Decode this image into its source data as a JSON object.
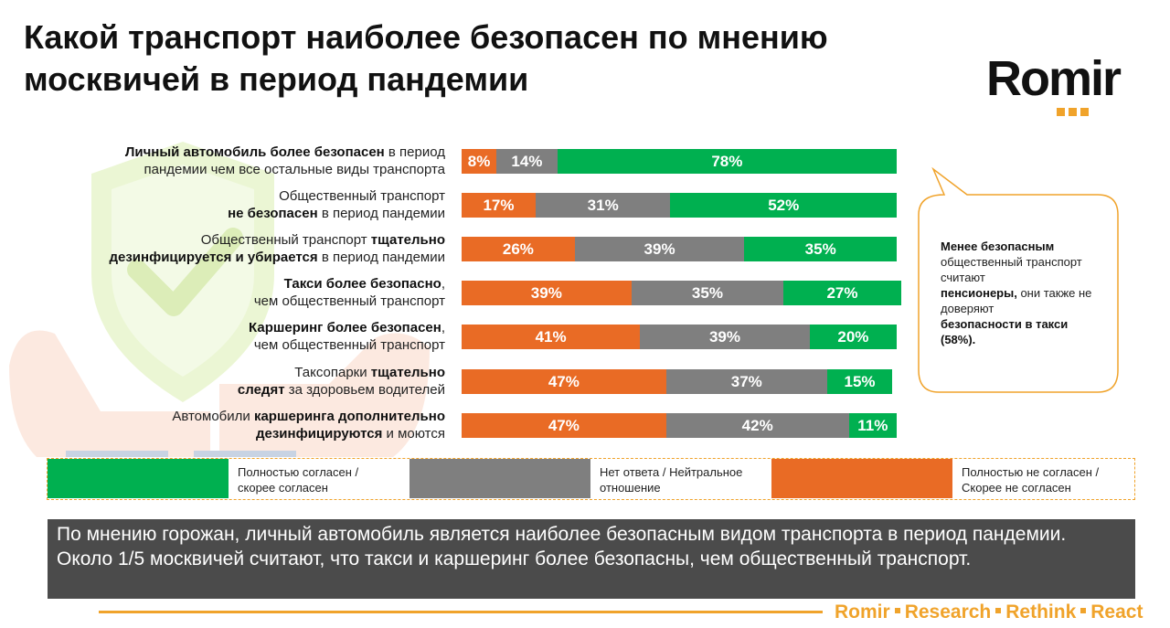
{
  "title_line1": "Какой транспорт наиболее безопасен по мнению",
  "title_line2": "москвичей в период пандемии",
  "logo": {
    "text": "Romir",
    "accent": "#F0A32B"
  },
  "colors": {
    "agree": "#00B050",
    "neutral": "#7F7F7F",
    "disagree": "#E96B25",
    "accent": "#F0A32B"
  },
  "chart_data": {
    "type": "bar",
    "orientation": "horizontal",
    "stacked": true,
    "percent": true,
    "categories": [
      "Личный автомобиль более безопасен в период пандемии чем все остальные виды транспорта",
      "Общественный транспорт не безопасен в период пандемии",
      "Общественный транспорт тщательно дезинфицируется и убирается в период пандемии",
      "Такси более безопасно, чем общественный транспорт",
      "Каршеринг более безопасен, чем общественный транспорт",
      "Таксопарки тщательно следят за здоровьем водителей",
      "Автомобили каршеринга дополнительно дезинфицируются и моются"
    ],
    "series": [
      {
        "name": "Полностью не согласен / Скорее не согласен",
        "color": "#E96B25",
        "values": [
          8,
          17,
          26,
          39,
          41,
          47,
          47
        ],
        "labels": [
          "8%",
          "17%",
          "26%",
          "39%",
          "41%",
          "47%",
          "47%"
        ]
      },
      {
        "name": "Нет ответа / Нейтральное отношение",
        "color": "#7F7F7F",
        "values": [
          14,
          31,
          39,
          35,
          39,
          37,
          42
        ],
        "labels": [
          "14%",
          "31%",
          "39%",
          "35%",
          "39%",
          "37%",
          "42%"
        ]
      },
      {
        "name": "Полностью согласен / скорее согласен",
        "color": "#00B050",
        "values": [
          78,
          52,
          35,
          27,
          20,
          15,
          11
        ],
        "labels": [
          "78%",
          "52%",
          "35%",
          "27%",
          "20%",
          "15%",
          "11%"
        ]
      }
    ]
  },
  "rows": [
    {
      "bold1": "Личный автомобиль более безопасен",
      "text1": " в период",
      "text2": "пандемии чем все остальные виды транспорта"
    },
    {
      "text1": "Общественный транспорт",
      "bold2": "не безопасен",
      "text2": " в период пандемии"
    },
    {
      "text1": "Общественный транспорт ",
      "bold1": "тщательно",
      "bold2": "дезинфицируется и убирается",
      "text2": " в период пандемии"
    },
    {
      "bold1": "Такси более безопасно",
      "text1": ",",
      "text2": "чем общественный транспорт"
    },
    {
      "bold1": "Каршеринг более безопасен",
      "text1": ",",
      "text2": "чем общественный транспорт"
    },
    {
      "text1": "Таксопарки ",
      "bold1": "тщательно",
      "bold2": "следят",
      "text2": " за здоровьем водителей"
    },
    {
      "text1": "Автомобили ",
      "bold1": "каршеринга дополнительно",
      "bold2": "дезинфицируются",
      "text2": " и моются"
    }
  ],
  "legend": [
    {
      "line1": "Полностью согласен /",
      "line2": "скорее согласен",
      "color": "#00B050"
    },
    {
      "line1": "Нет ответа / Нейтральное",
      "line2": "отношение",
      "color": "#7F7F7F"
    },
    {
      "line1": "Полностью не согласен /",
      "line2": "Скорее не согласен",
      "color": "#E96B25"
    }
  ],
  "callout": {
    "b1": "Менее безопасным",
    "t1": "общественный транспорт считают",
    "b2": "пенсионеры,",
    "t2": " они также не доверяют",
    "b3": "безопасности в такси (58%)."
  },
  "summary": "По мнению горожан, личный автомобиль является наиболее безопасным видом транспорта в период пандемии. Около 1/5 москвичей считают, что такси и каршеринг более безопасны, чем общественный транспорт.",
  "footer": {
    "w1": "Romir",
    "w2": "Research",
    "w3": "Rethink",
    "w4": "React"
  }
}
